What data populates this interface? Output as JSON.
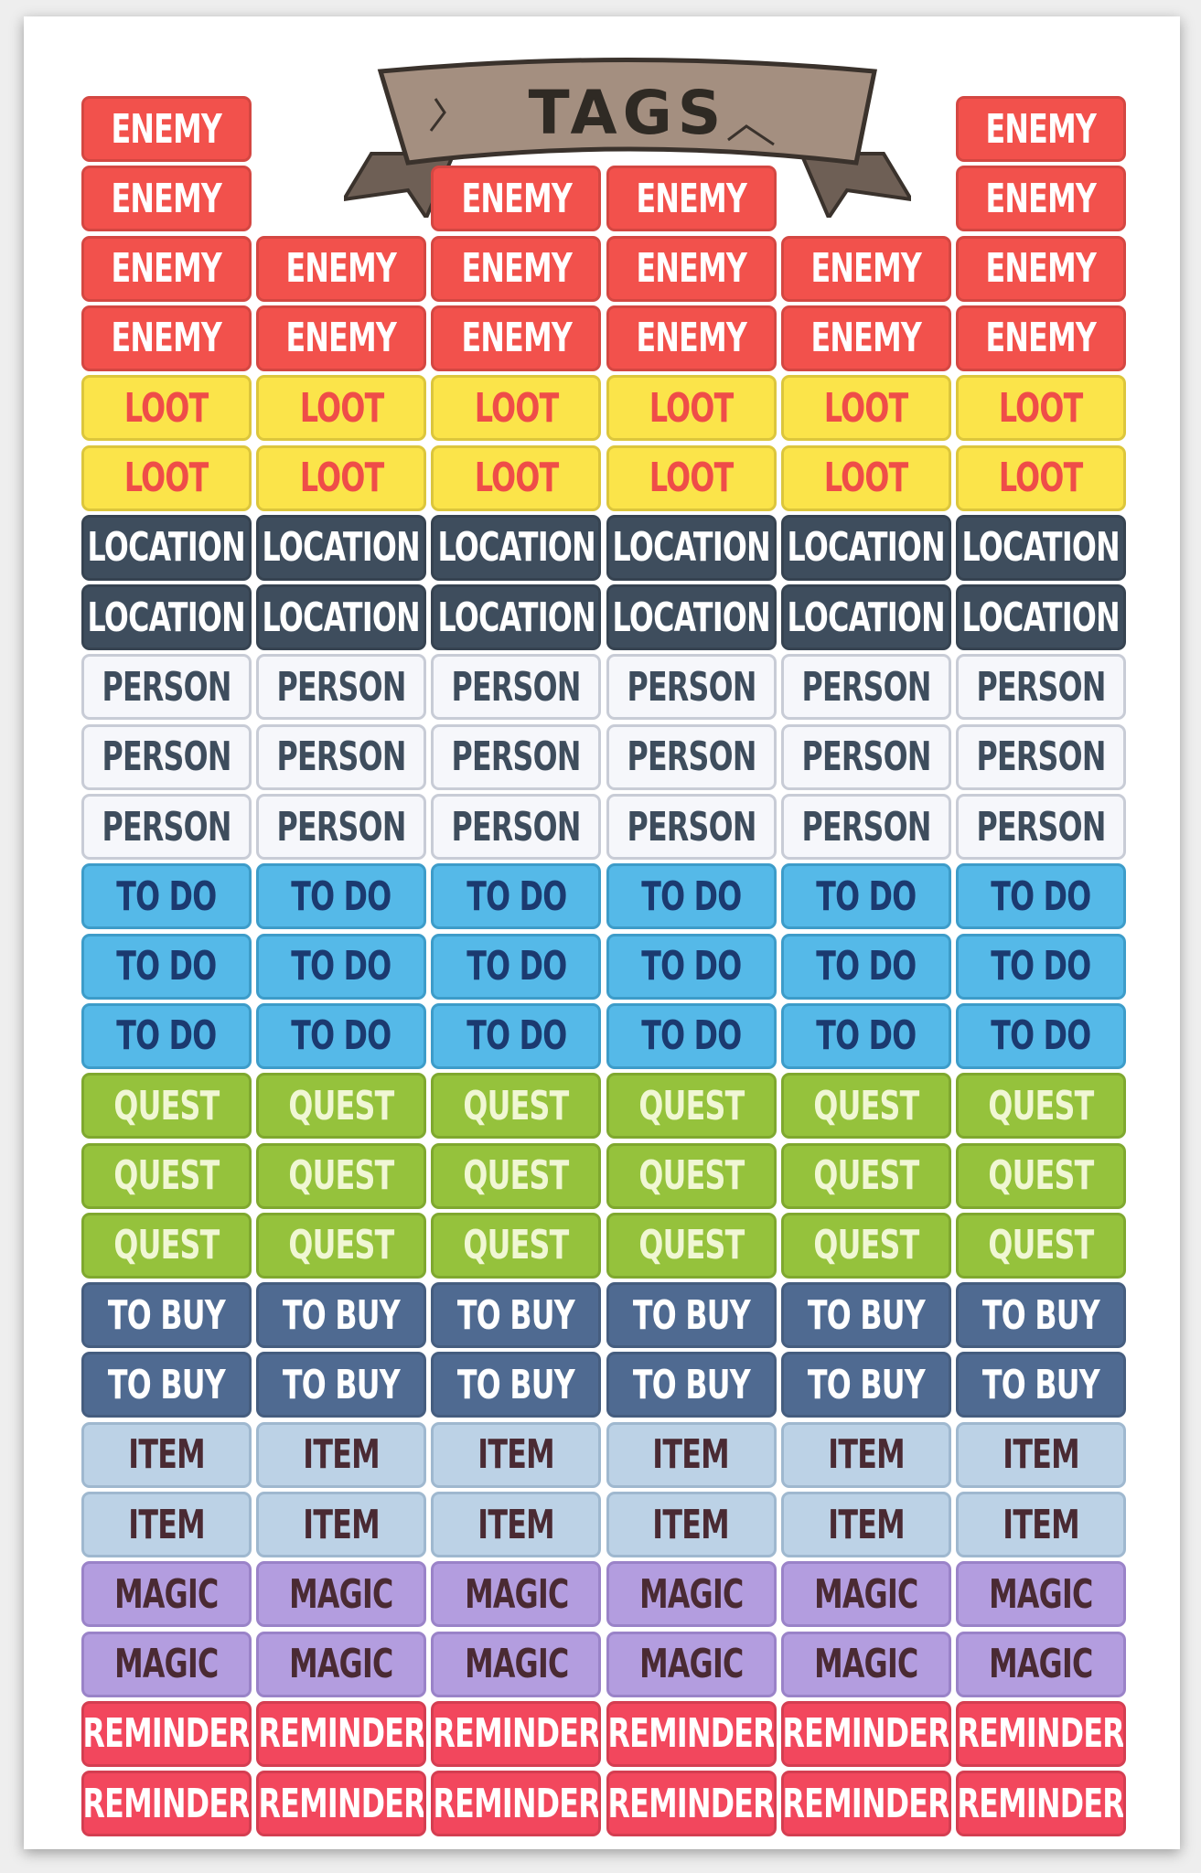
{
  "header": {
    "title": "TAGS"
  },
  "rows": [
    [
      "ENEMY",
      null,
      null,
      null,
      null,
      "ENEMY"
    ],
    [
      "ENEMY",
      null,
      "ENEMY",
      "ENEMY",
      null,
      "ENEMY"
    ],
    [
      "ENEMY",
      "ENEMY",
      "ENEMY",
      "ENEMY",
      "ENEMY",
      "ENEMY"
    ],
    [
      "ENEMY",
      "ENEMY",
      "ENEMY",
      "ENEMY",
      "ENEMY",
      "ENEMY"
    ],
    [
      "LOOT",
      "LOOT",
      "LOOT",
      "LOOT",
      "LOOT",
      "LOOT"
    ],
    [
      "LOOT",
      "LOOT",
      "LOOT",
      "LOOT",
      "LOOT",
      "LOOT"
    ],
    [
      "LOCATION",
      "LOCATION",
      "LOCATION",
      "LOCATION",
      "LOCATION",
      "LOCATION"
    ],
    [
      "LOCATION",
      "LOCATION",
      "LOCATION",
      "LOCATION",
      "LOCATION",
      "LOCATION"
    ],
    [
      "PERSON",
      "PERSON",
      "PERSON",
      "PERSON",
      "PERSON",
      "PERSON"
    ],
    [
      "PERSON",
      "PERSON",
      "PERSON",
      "PERSON",
      "PERSON",
      "PERSON"
    ],
    [
      "PERSON",
      "PERSON",
      "PERSON",
      "PERSON",
      "PERSON",
      "PERSON"
    ],
    [
      "TO DO",
      "TO DO",
      "TO DO",
      "TO DO",
      "TO DO",
      "TO DO"
    ],
    [
      "TO DO",
      "TO DO",
      "TO DO",
      "TO DO",
      "TO DO",
      "TO DO"
    ],
    [
      "TO DO",
      "TO DO",
      "TO DO",
      "TO DO",
      "TO DO",
      "TO DO"
    ],
    [
      "QUEST",
      "QUEST",
      "QUEST",
      "QUEST",
      "QUEST",
      "QUEST"
    ],
    [
      "QUEST",
      "QUEST",
      "QUEST",
      "QUEST",
      "QUEST",
      "QUEST"
    ],
    [
      "QUEST",
      "QUEST",
      "QUEST",
      "QUEST",
      "QUEST",
      "QUEST"
    ],
    [
      "TO BUY",
      "TO BUY",
      "TO BUY",
      "TO BUY",
      "TO BUY",
      "TO BUY"
    ],
    [
      "TO BUY",
      "TO BUY",
      "TO BUY",
      "TO BUY",
      "TO BUY",
      "TO BUY"
    ],
    [
      "ITEM",
      "ITEM",
      "ITEM",
      "ITEM",
      "ITEM",
      "ITEM"
    ],
    [
      "ITEM",
      "ITEM",
      "ITEM",
      "ITEM",
      "ITEM",
      "ITEM"
    ],
    [
      "MAGIC",
      "MAGIC",
      "MAGIC",
      "MAGIC",
      "MAGIC",
      "MAGIC"
    ],
    [
      "MAGIC",
      "MAGIC",
      "MAGIC",
      "MAGIC",
      "MAGIC",
      "MAGIC"
    ],
    [
      "REMINDER",
      "REMINDER",
      "REMINDER",
      "REMINDER",
      "REMINDER",
      "REMINDER"
    ],
    [
      "REMINDER",
      "REMINDER",
      "REMINDER",
      "REMINDER",
      "REMINDER",
      "REMINDER"
    ]
  ]
}
